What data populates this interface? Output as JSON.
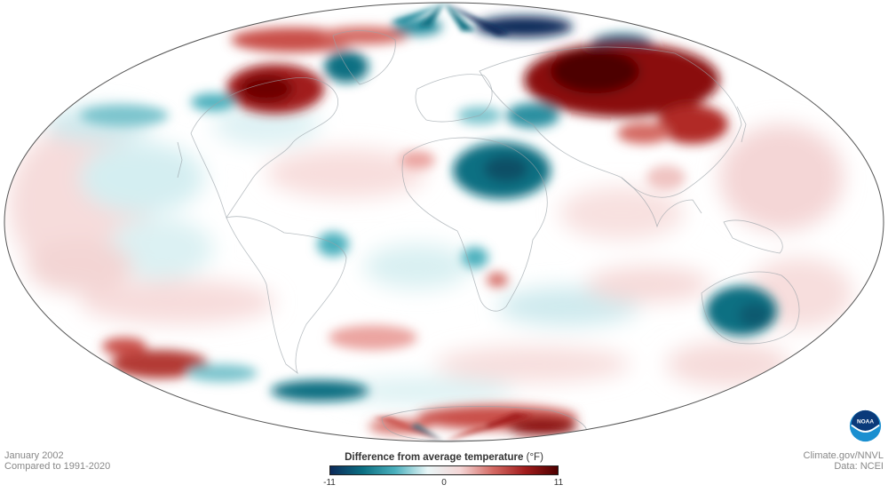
{
  "map": {
    "projection": "mollweide",
    "ocean_color": "#ffffff",
    "outline_color": "#555555",
    "anomaly_regions": [
      {
        "region": "northwest-territories-canada",
        "anomaly_f": 9
      },
      {
        "region": "greenland-north",
        "anomaly_f": 6
      },
      {
        "region": "baffin-bay",
        "anomaly_f": -6
      },
      {
        "region": "arctic-siberia",
        "anomaly_f": -11
      },
      {
        "region": "northeast-siberia",
        "anomaly_f": -8
      },
      {
        "region": "russia-central",
        "anomaly_f": 11
      },
      {
        "region": "kazakhstan-mongolia",
        "anomaly_f": 8
      },
      {
        "region": "mediterranean-central",
        "anomaly_f": -4
      },
      {
        "region": "middle-east-southwest-asia",
        "anomaly_f": -9
      },
      {
        "region": "central-africa",
        "anomaly_f": -3
      },
      {
        "region": "brazil-east",
        "anomaly_f": -4
      },
      {
        "region": "southern-pacific-east",
        "anomaly_f": 5
      },
      {
        "region": "southern-ocean-south-atlantic",
        "anomaly_f": -6
      },
      {
        "region": "australia-east",
        "anomaly_f": -7
      },
      {
        "region": "antarctica-east",
        "anomaly_f": 6
      },
      {
        "region": "north-atlantic-tropical",
        "anomaly_f": 3
      }
    ]
  },
  "info_left": {
    "line1": "January 2002",
    "line2": "Compared to 1991-2020"
  },
  "info_right": {
    "line1": "Climate.gov/NNVL",
    "line2": "Data: NCEI"
  },
  "legend": {
    "title": "Difference from average temperature",
    "unit": "(°F)",
    "min_label": "-11",
    "mid_label": "0",
    "max_label": "11",
    "min": -11,
    "max": 11,
    "colors": [
      "#0c2a5a",
      "#0b6f82",
      "#4bb0bd",
      "#eaf7f8",
      "#f4d6d6",
      "#d46a64",
      "#a11c1c",
      "#4e0000"
    ]
  },
  "logo": {
    "text": "NOAA",
    "colors": [
      "#0a3a7a",
      "#1a8fd0",
      "#ffffff"
    ]
  }
}
